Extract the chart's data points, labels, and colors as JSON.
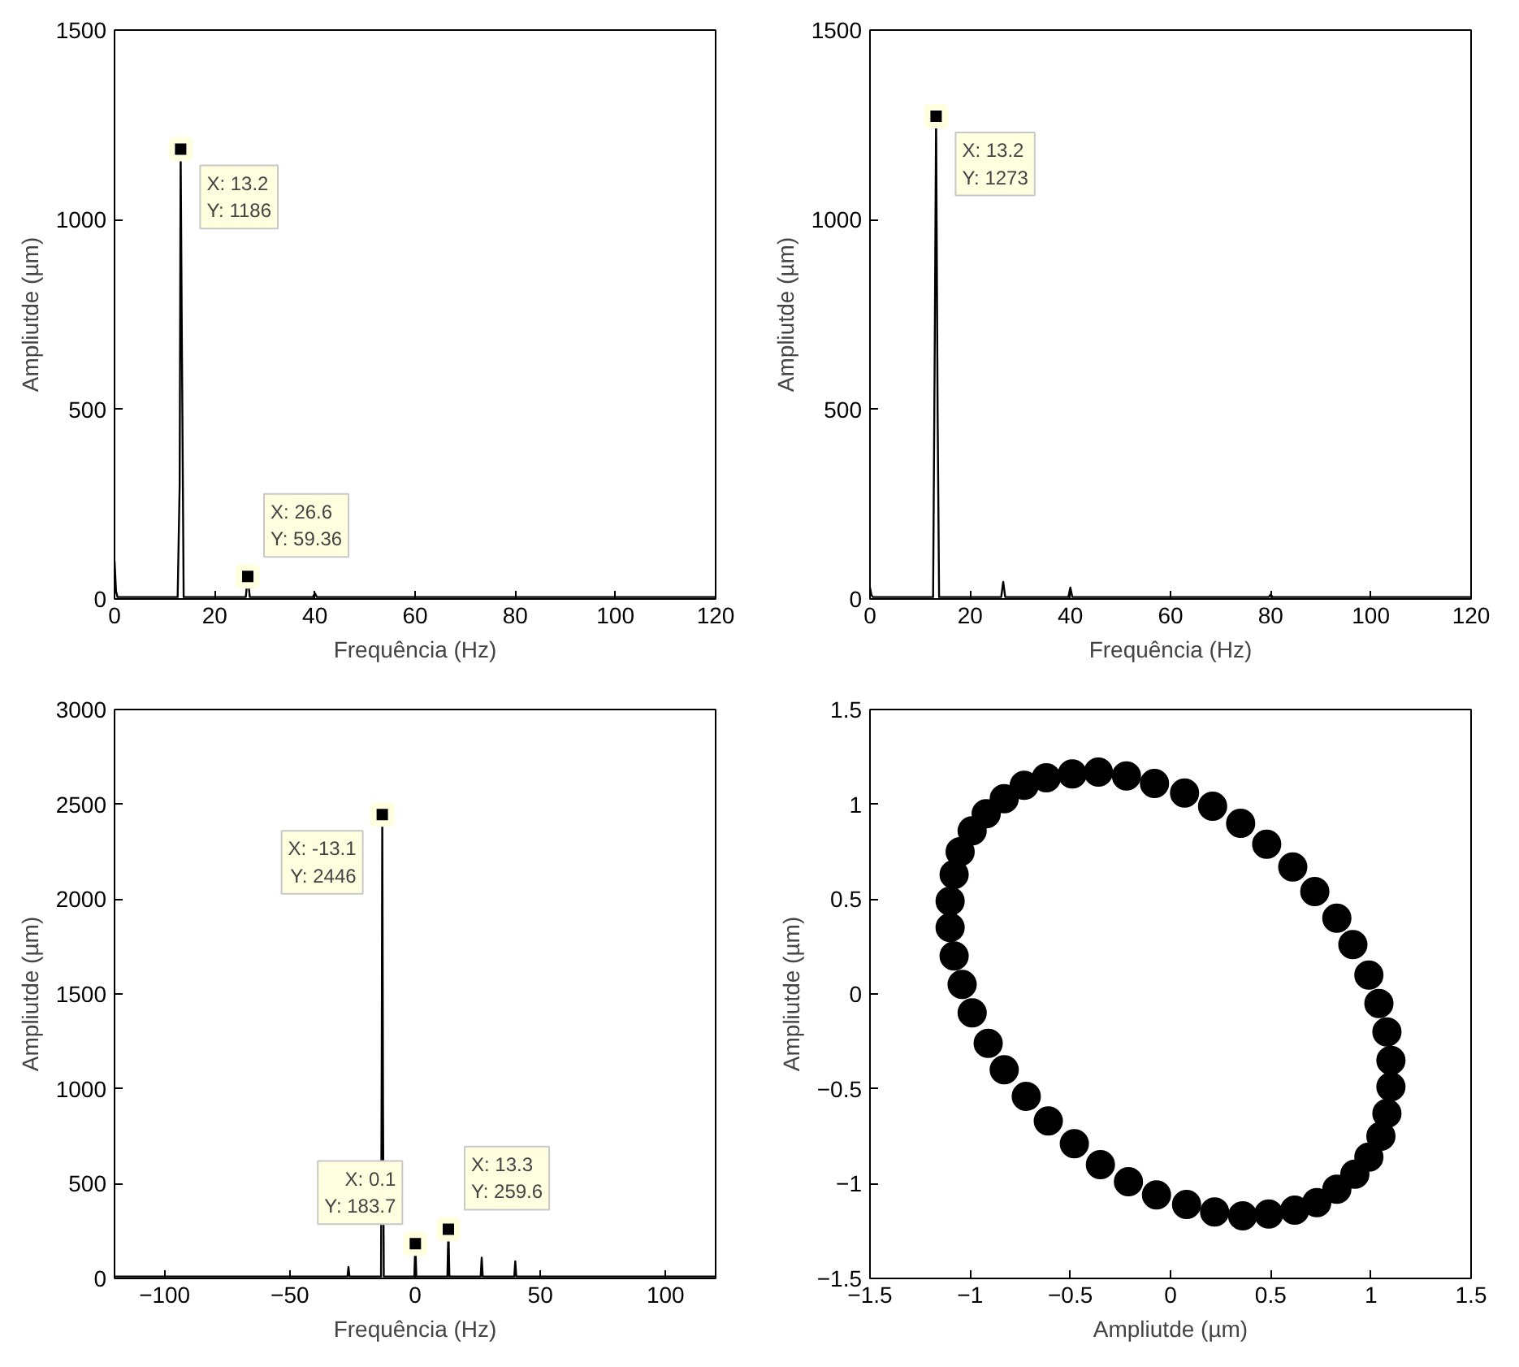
{
  "chart_data": [
    {
      "type": "line",
      "xlabel": "Frequência (Hz)",
      "ylabel": "Ampliutde (µm)",
      "xlim": [
        0,
        120
      ],
      "ylim": [
        0,
        1500
      ],
      "xticks": [
        0,
        20,
        40,
        60,
        80,
        100,
        120
      ],
      "yticks": [
        0,
        500,
        1000,
        1500
      ],
      "grid": false,
      "series": [
        {
          "color": "#000000",
          "x": [
            0,
            0.3,
            0.6,
            5,
            12.6,
            13.0,
            13.2,
            13.4,
            13.8,
            20,
            26.2,
            26.6,
            27.0,
            33,
            39.6,
            40,
            40.4,
            60,
            80,
            100,
            120
          ],
          "values": [
            100,
            20,
            5,
            5,
            5,
            300,
            1186,
            760,
            5,
            5,
            5,
            59.36,
            5,
            5,
            5,
            15,
            5,
            5,
            5,
            5,
            5
          ]
        }
      ],
      "annotations": [
        {
          "text": "X: 13.2\nY: 1186",
          "x": 13.2,
          "y": 1186
        },
        {
          "text": "X: 26.6\nY: 59.36",
          "x": 26.6,
          "y": 59.36
        }
      ]
    },
    {
      "type": "line",
      "xlabel": "Frequência (Hz)",
      "ylabel": "Ampliutde (µm)",
      "xlim": [
        0,
        120
      ],
      "ylim": [
        0,
        1500
      ],
      "xticks": [
        0,
        20,
        40,
        60,
        80,
        100,
        120
      ],
      "yticks": [
        0,
        500,
        1000,
        1500
      ],
      "grid": false,
      "series": [
        {
          "color": "#000000",
          "x": [
            0,
            0.3,
            0.6,
            6,
            12.6,
            12.9,
            13.2,
            13.5,
            13.8,
            20,
            26.2,
            26.6,
            27.0,
            33,
            39.6,
            40,
            40.4,
            60,
            79.6,
            80,
            80.4,
            100,
            120
          ],
          "values": [
            30,
            10,
            5,
            5,
            5,
            600,
            1273,
            500,
            5,
            5,
            5,
            45,
            5,
            5,
            5,
            30,
            5,
            5,
            5,
            12,
            5,
            5,
            5
          ]
        }
      ],
      "annotations": [
        {
          "text": "X: 13.2\nY: 1273",
          "x": 13.2,
          "y": 1273
        }
      ]
    },
    {
      "type": "line",
      "xlabel": "Frequência (Hz)",
      "ylabel": "Ampliutde (µm)",
      "xlim": [
        -120,
        120
      ],
      "ylim": [
        0,
        3000
      ],
      "xticks": [
        -100,
        -50,
        0,
        50,
        100
      ],
      "yticks": [
        0,
        500,
        1000,
        1500,
        2000,
        2500,
        3000
      ],
      "grid": false,
      "series": [
        {
          "color": "#000000",
          "x": [
            -120,
            -100,
            -60,
            -27,
            -26.6,
            -26.2,
            -13.6,
            -13.3,
            -13.1,
            -12.8,
            -12.5,
            -5,
            -0.3,
            0.1,
            0.5,
            12.9,
            13.3,
            13.7,
            26.2,
            26.6,
            27.0,
            39.6,
            40,
            40.4,
            60,
            100,
            120
          ],
          "values": [
            10,
            10,
            10,
            10,
            60,
            10,
            10,
            1200,
            2446,
            900,
            10,
            10,
            10,
            183.7,
            10,
            10,
            259.6,
            10,
            10,
            110,
            10,
            10,
            90,
            10,
            10,
            10,
            10
          ]
        }
      ],
      "annotations": [
        {
          "text": "X: -13.1\nY: 2446",
          "x": -13.1,
          "y": 2446
        },
        {
          "text": "X: 0.1\nY: 183.7",
          "x": 0.1,
          "y": 183.7
        },
        {
          "text": "X: 13.3\nY: 259.6",
          "x": 13.3,
          "y": 259.6
        }
      ]
    },
    {
      "type": "scatter",
      "marker": "circle",
      "xlabel": "Ampliutde (µm)",
      "ylabel": "Ampliutde (µm)",
      "xlim": [
        -1.5,
        1.5
      ],
      "ylim": [
        -1.5,
        1.5
      ],
      "xticks": [
        -1.5,
        -1,
        -0.5,
        0,
        0.5,
        1,
        1.5
      ],
      "yticks": [
        -1.5,
        -1,
        -0.5,
        0,
        0.5,
        1,
        1.5
      ],
      "grid": false,
      "series": [
        {
          "color": "#000000",
          "x": [
            1.08,
            1.04,
            0.99,
            0.91,
            0.83,
            0.72,
            0.61,
            0.48,
            0.35,
            0.21,
            0.07,
            -0.08,
            -0.22,
            -0.36,
            -0.49,
            -0.62,
            -0.73,
            -0.83,
            -0.92,
            -0.99,
            -1.05,
            -1.08,
            -1.1,
            -1.1,
            -1.08,
            -1.04,
            -0.99,
            -0.91,
            -0.83,
            -0.72,
            -0.61,
            -0.48,
            -0.35,
            -0.21,
            -0.07,
            0.08,
            0.22,
            0.36,
            0.49,
            0.62,
            0.73,
            0.83,
            0.92,
            0.99,
            1.05,
            1.08,
            1.1,
            1.1
          ],
          "values": [
            -0.2,
            -0.05,
            0.1,
            0.26,
            0.4,
            0.54,
            0.67,
            0.79,
            0.9,
            0.99,
            1.06,
            1.11,
            1.15,
            1.17,
            1.16,
            1.14,
            1.1,
            1.03,
            0.95,
            0.86,
            0.75,
            0.63,
            0.49,
            0.35,
            0.2,
            0.05,
            -0.1,
            -0.26,
            -0.4,
            -0.54,
            -0.67,
            -0.79,
            -0.9,
            -0.99,
            -1.06,
            -1.11,
            -1.15,
            -1.17,
            -1.16,
            -1.14,
            -1.1,
            -1.03,
            -0.95,
            -0.86,
            -0.75,
            -0.63,
            -0.49,
            -0.35
          ]
        }
      ]
    }
  ]
}
